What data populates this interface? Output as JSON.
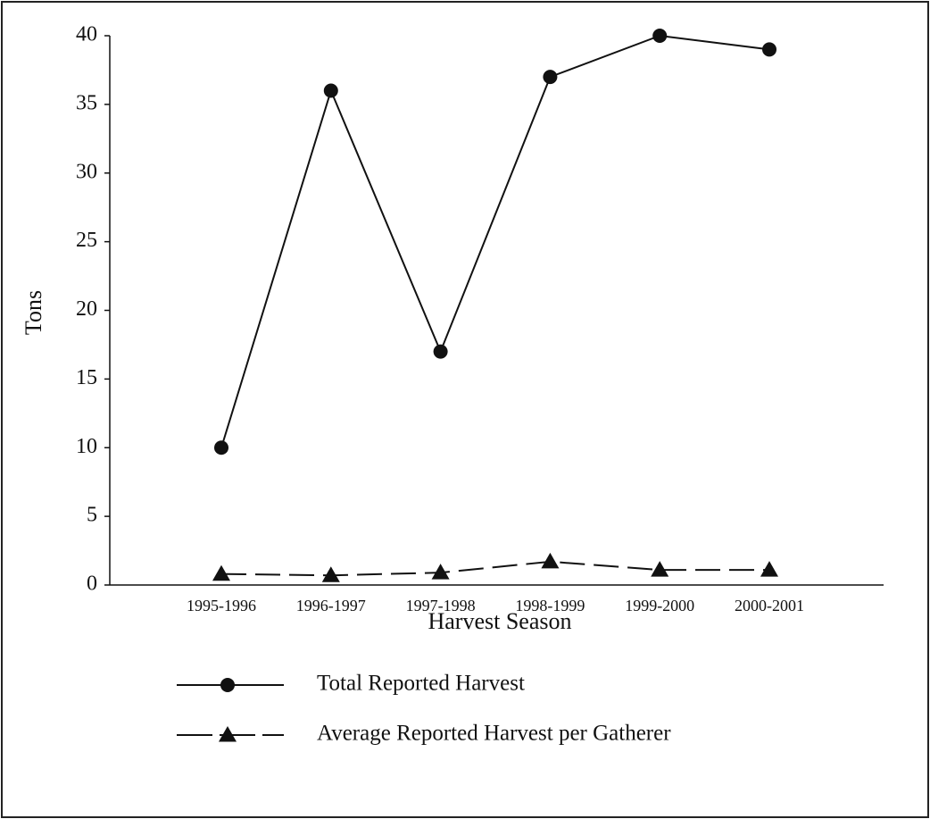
{
  "chart_data": {
    "type": "line",
    "y_label": "Tons",
    "x_label": "Harvest Season",
    "categories": [
      "1995-1996",
      "1996-1997",
      "1997-1998",
      "1998-1999",
      "1999-2000",
      "2000-2001"
    ],
    "series": [
      {
        "name": "Total Reported Harvest",
        "color": "#111111",
        "marker": "circle",
        "dash": false,
        "values": [
          10,
          36,
          17,
          37,
          40,
          39
        ]
      },
      {
        "name": "Average Reported Harvest per Gatherer",
        "color": "#111111",
        "marker": "triangle",
        "dash": true,
        "values": [
          0.8,
          0.7,
          0.9,
          1.7,
          1.1,
          1.1
        ]
      }
    ],
    "ylim": [
      0,
      40
    ],
    "yticks": [
      0,
      5,
      10,
      15,
      20,
      25,
      30,
      35,
      40
    ],
    "grid": false,
    "legend_position": "bottom"
  }
}
